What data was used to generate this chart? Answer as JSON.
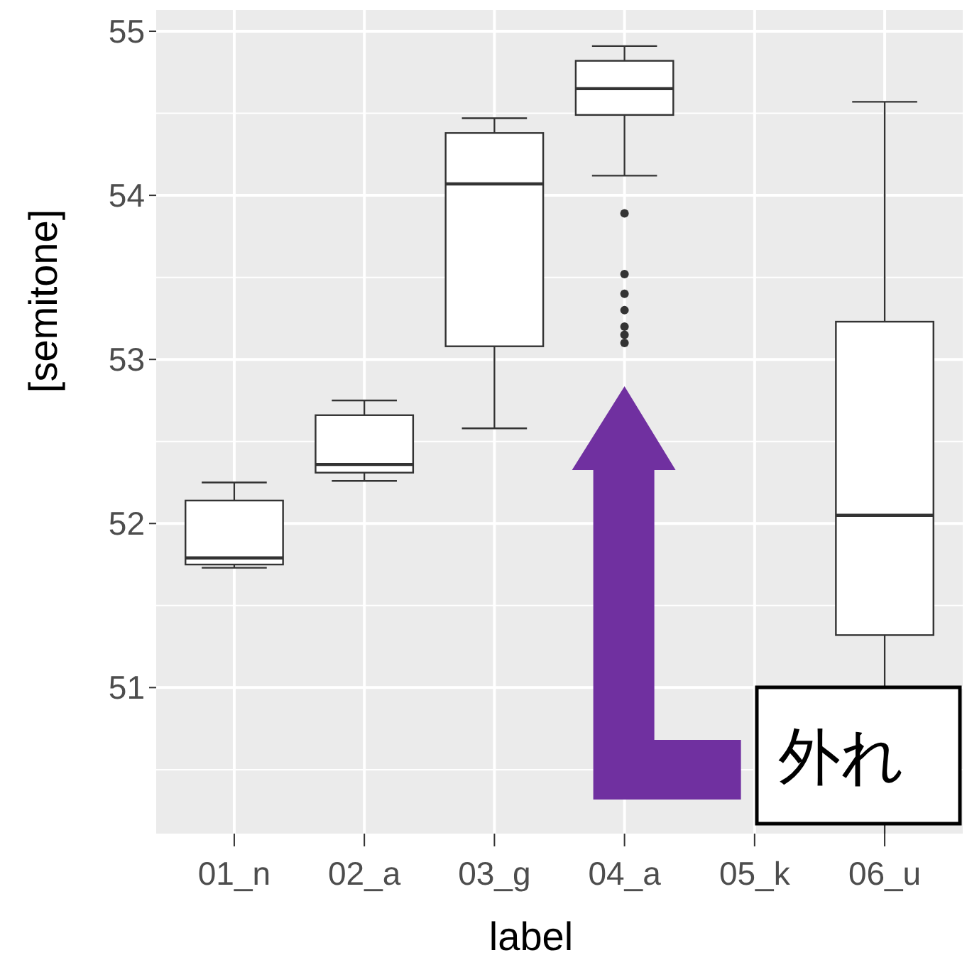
{
  "chart_data": {
    "type": "box",
    "xlabel": "label",
    "ylabel": "[semitone]",
    "categories": [
      "01_n",
      "02_a",
      "03_g",
      "04_a",
      "05_k",
      "06_u"
    ],
    "boxes": [
      {
        "low": 51.73,
        "q1": 51.75,
        "median": 51.79,
        "q3": 52.14,
        "high": 52.25
      },
      {
        "low": 52.26,
        "q1": 52.31,
        "median": 52.36,
        "q3": 52.66,
        "high": 52.75
      },
      {
        "low": 52.58,
        "q1": 53.08,
        "median": 54.07,
        "q3": 54.38,
        "high": 54.47
      },
      {
        "low": 54.12,
        "q1": 54.49,
        "median": 54.65,
        "q3": 54.82,
        "high": 54.91,
        "outliers": [
          53.89,
          53.52,
          53.4,
          53.3,
          53.2,
          53.15,
          53.1
        ]
      },
      null,
      {
        "low": null,
        "q1": 51.32,
        "median": 52.05,
        "q3": 53.23,
        "high": 54.57
      }
    ],
    "ylim": [
      50.11,
      55.13
    ],
    "yticks": [
      51,
      52,
      53,
      54,
      55
    ],
    "grid": true,
    "annotations": [
      "外れ"
    ]
  }
}
